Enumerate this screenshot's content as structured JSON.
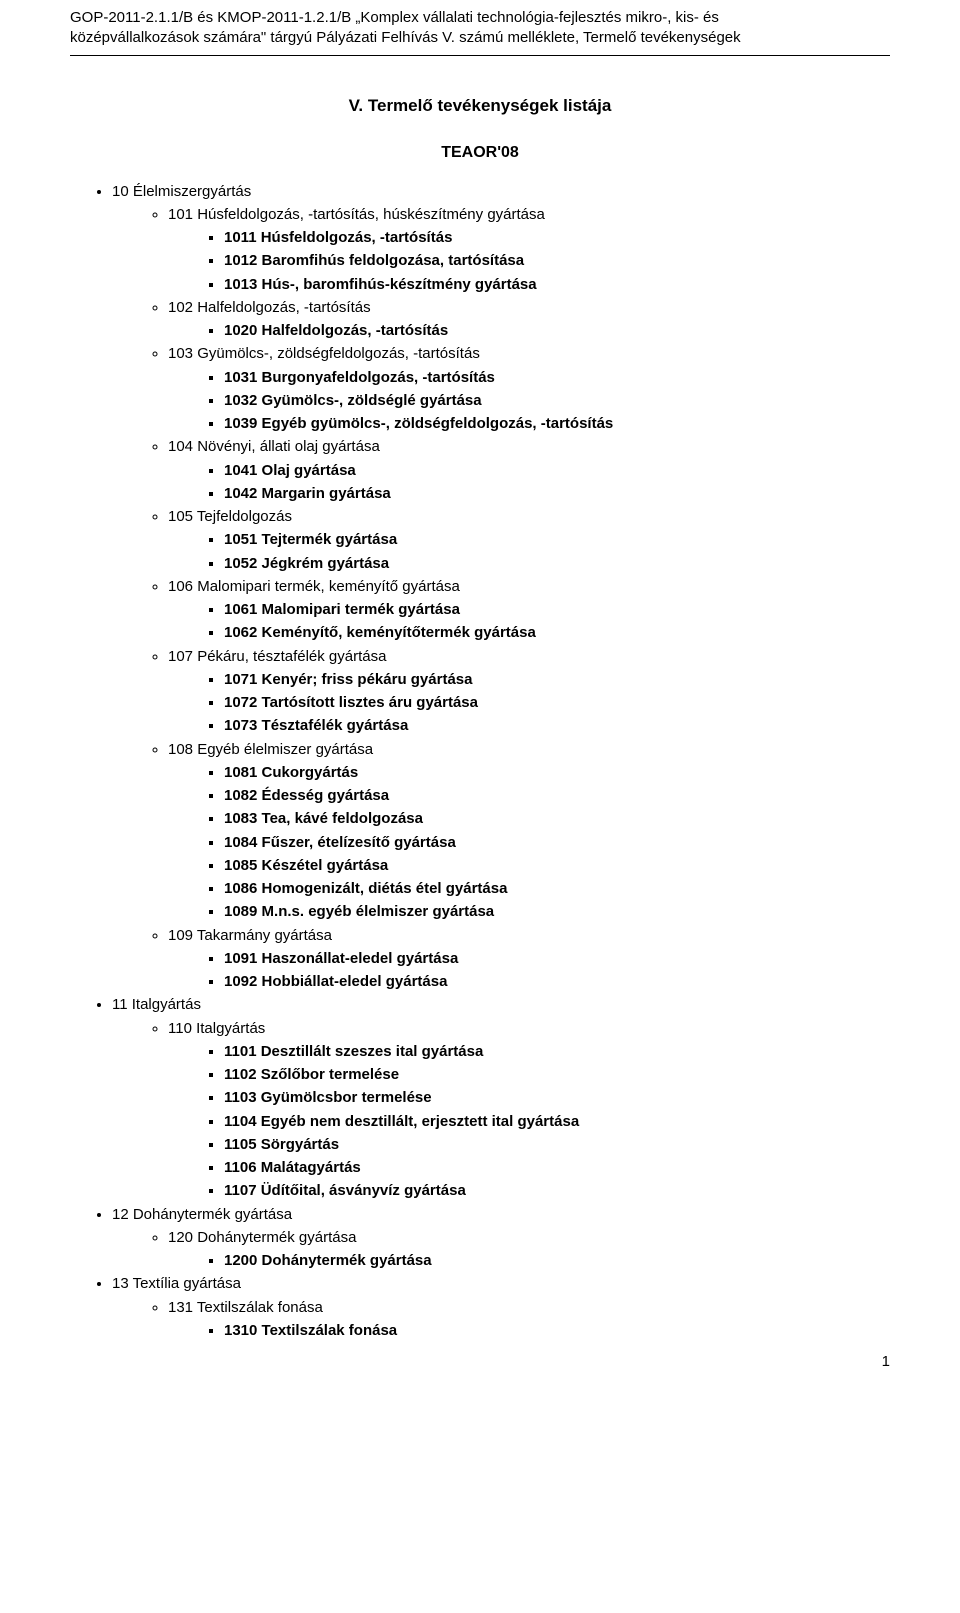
{
  "header": {
    "line1": "GOP-2011-2.1.1/B és KMOP-2011-1.2.1/B „Komplex vállalati technológia-fejlesztés mikro-, kis- és",
    "line2": "középvállalkozások számára\" tárgyú Pályázati Felhívás V. számú melléklete, Termelő tevékenységek"
  },
  "title": "V.    Termelő tevékenységek listája",
  "subtitle": "TEAOR'08",
  "page_number": "1",
  "list": [
    {
      "label": "10 Élelmiszergyártás",
      "children": [
        {
          "label": "101 Húsfeldolgozás, -tartósítás, húskészítmény gyártása",
          "children": [
            {
              "label": "1011 Húsfeldolgozás, -tartósítás",
              "bold": true
            },
            {
              "label": "1012 Baromfihús feldolgozása, tartósítása",
              "bold": true
            },
            {
              "label": "1013 Hús-, baromfihús-készítmény gyártása",
              "bold": true
            }
          ]
        },
        {
          "label": "102 Halfeldolgozás, -tartósítás",
          "children": [
            {
              "label": "1020 Halfeldolgozás, -tartósítás",
              "bold": true
            }
          ]
        },
        {
          "label": "103 Gyümölcs-, zöldségfeldolgozás, -tartósítás",
          "children": [
            {
              "label": "1031 Burgonyafeldolgozás, -tartósítás",
              "bold": true
            },
            {
              "label": "1032 Gyümölcs-, zöldséglé gyártása",
              "bold": true
            },
            {
              "label": "1039 Egyéb gyümölcs-, zöldségfeldolgozás, -tartósítás",
              "bold": true
            }
          ]
        },
        {
          "label": "104 Növényi, állati olaj gyártása",
          "children": [
            {
              "label": "1041 Olaj gyártása",
              "bold": true
            },
            {
              "label": "1042 Margarin gyártása",
              "bold": true
            }
          ]
        },
        {
          "label": "105 Tejfeldolgozás",
          "children": [
            {
              "label": "1051 Tejtermék gyártása",
              "bold": true
            },
            {
              "label": "1052 Jégkrém gyártása",
              "bold": true
            }
          ]
        },
        {
          "label": "106 Malomipari termék, keményítő gyártása",
          "children": [
            {
              "label": "1061 Malomipari termék gyártása",
              "bold": true
            },
            {
              "label": "1062 Keményítő, keményítőtermék gyártása",
              "bold": true
            }
          ]
        },
        {
          "label": "107 Pékáru, tésztafélék gyártása",
          "children": [
            {
              "label": "1071 Kenyér; friss pékáru gyártása",
              "bold": true
            },
            {
              "label": "1072 Tartósított lisztes áru gyártása",
              "bold": true
            },
            {
              "label": "1073 Tésztafélék gyártása",
              "bold": true
            }
          ]
        },
        {
          "label": "108 Egyéb élelmiszer gyártása",
          "children": [
            {
              "label": "1081 Cukorgyártás",
              "bold": true
            },
            {
              "label": "1082 Édesség gyártása",
              "bold": true
            },
            {
              "label": "1083 Tea, kávé feldolgozása",
              "bold": true
            },
            {
              "label": "1084 Fűszer, ételízesítő gyártása",
              "bold": true
            },
            {
              "label": "1085 Készétel gyártása",
              "bold": true
            },
            {
              "label": "1086 Homogenizált, diétás étel gyártása",
              "bold": true
            },
            {
              "label": "1089 M.n.s. egyéb élelmiszer gyártása",
              "bold": true
            }
          ]
        },
        {
          "label": "109 Takarmány gyártása",
          "children": [
            {
              "label": "1091 Haszonállat-eledel gyártása",
              "bold": true
            },
            {
              "label": "1092 Hobbiállat-eledel gyártása",
              "bold": true
            }
          ]
        }
      ]
    },
    {
      "label": "11 Italgyártás",
      "children": [
        {
          "label": "110 Italgyártás",
          "children": [
            {
              "label": "1101 Desztillált szeszes ital gyártása",
              "bold": true
            },
            {
              "label": "1102 Szőlőbor termelése",
              "bold": true
            },
            {
              "label": "1103 Gyümölcsbor termelése",
              "bold": true
            },
            {
              "label": "1104 Egyéb nem desztillált, erjesztett ital gyártása",
              "bold": true
            },
            {
              "label": "1105 Sörgyártás",
              "bold": true
            },
            {
              "label": "1106 Malátagyártás",
              "bold": true
            },
            {
              "label": "1107 Üdítőital, ásványvíz gyártása",
              "bold": true
            }
          ]
        }
      ]
    },
    {
      "label": "12 Dohánytermék gyártása",
      "children": [
        {
          "label": "120 Dohánytermék gyártása",
          "children": [
            {
              "label": "1200 Dohánytermék gyártása",
              "bold": true
            }
          ]
        }
      ]
    },
    {
      "label": "13 Textília gyártása",
      "children": [
        {
          "label": "131 Textilszálak fonása",
          "children": [
            {
              "label": "1310 Textilszálak fonása",
              "bold": true
            }
          ]
        }
      ]
    }
  ]
}
